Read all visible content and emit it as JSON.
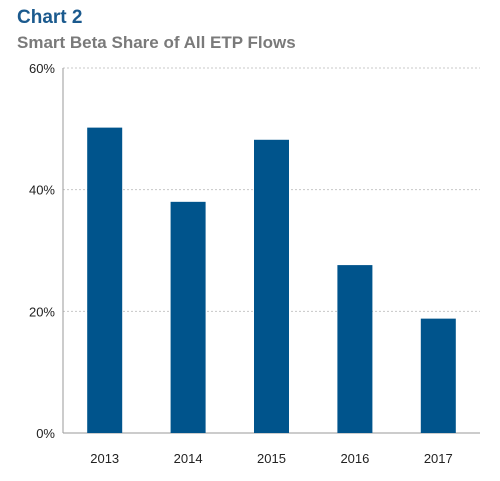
{
  "header": {
    "chart_label": "Chart 2",
    "title": "Smart Beta Share of All ETP Flows"
  },
  "colors": {
    "bar": "#00548c",
    "gridline": "#c8c8c8",
    "label": "#1b5a8e",
    "title": "#7a7a7a"
  },
  "chart_data": {
    "type": "bar",
    "title": "Smart Beta Share of All ETP Flows",
    "xlabel": "",
    "ylabel": "",
    "categories": [
      "2013",
      "2014",
      "2015",
      "2016",
      "2017"
    ],
    "values": [
      50.2,
      38.0,
      48.2,
      27.6,
      18.8
    ],
    "ylim": [
      0,
      60
    ],
    "yticks": [
      0,
      20,
      40,
      60
    ],
    "ytick_labels": [
      "0%",
      "20%",
      "40%",
      "60%"
    ],
    "grid": true,
    "legend": "none"
  }
}
